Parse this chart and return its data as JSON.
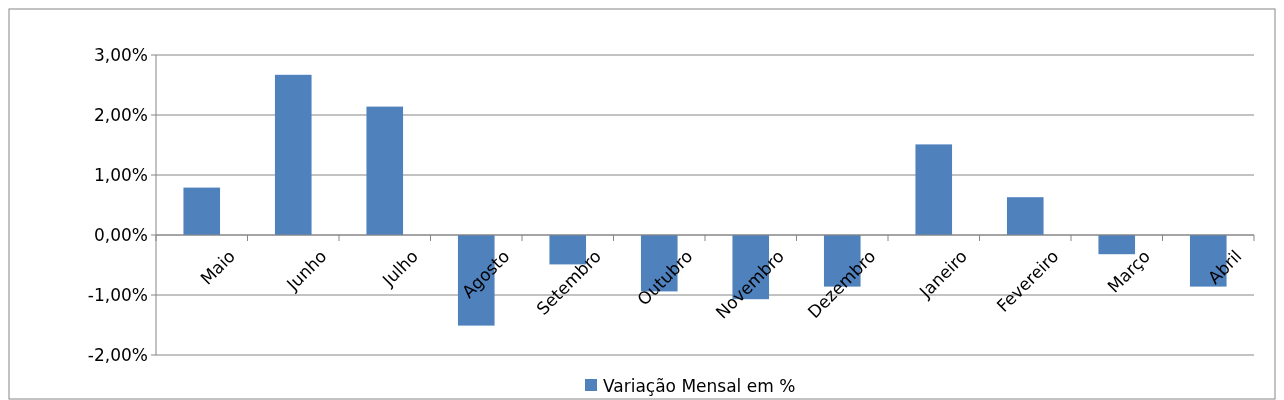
{
  "chart_data": {
    "type": "bar",
    "categories": [
      "Maio",
      "Junho",
      "Julho",
      "Agosto",
      "Setembro",
      "Outubro",
      "Novembro",
      "Dezembro",
      "Janeiro",
      "Fevereiro",
      "Março",
      "Abril"
    ],
    "series": [
      {
        "name": "Variação Mensal em %",
        "color": "#4f81bd",
        "values": [
          0.79,
          2.67,
          2.14,
          -1.51,
          -0.49,
          -0.94,
          -1.07,
          -0.86,
          1.51,
          0.63,
          -0.32,
          -0.86
        ]
      }
    ],
    "ylim": [
      -2,
      3
    ],
    "yticks": [
      {
        "value": -2,
        "label": "-2,00%"
      },
      {
        "value": -1,
        "label": "-1,00%"
      },
      {
        "value": 0,
        "label": "0,00%"
      },
      {
        "value": 1,
        "label": "1,00%"
      },
      {
        "value": 2,
        "label": "2,00%"
      },
      {
        "value": 3,
        "label": "3,00%"
      }
    ],
    "grid": "y",
    "legend": "bottom"
  }
}
